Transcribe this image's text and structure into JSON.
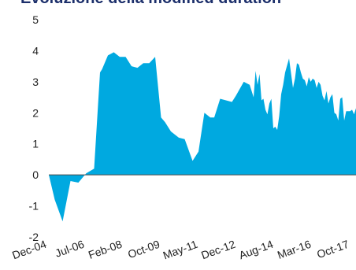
{
  "chart_data": {
    "type": "area",
    "title": "Evoluzione della modified duration",
    "xlabel": "",
    "ylabel": "",
    "ylim": [
      -2,
      5
    ],
    "yticks": [
      5,
      4,
      3,
      2,
      1,
      0,
      -1,
      -2
    ],
    "xlim": [
      "2004-12",
      "2017-12"
    ],
    "xticks": [
      "Dec-04",
      "Jul-06",
      "Feb-08",
      "Oct-09",
      "May-11",
      "Dec-12",
      "Aug-14",
      "Mar-16",
      "Oct-17"
    ],
    "grid": false,
    "legend": "none",
    "color": "#00a9e0",
    "series": [
      {
        "x": [
          "2004-12",
          "2005-03",
          "2005-07",
          "2005-11",
          "2006-03",
          "2006-07",
          "2006-11",
          "2007-02",
          "2007-03",
          "2007-06",
          "2007-09",
          "2007-12",
          "2008-03",
          "2008-06",
          "2008-09",
          "2008-12",
          "2009-03",
          "2009-06",
          "2009-09",
          "2009-11",
          "2010-02",
          "2010-06",
          "2010-09",
          "2011-01",
          "2011-04",
          "2011-07",
          "2011-10",
          "2011-12",
          "2012-03",
          "2012-06",
          "2012-09",
          "2012-11",
          "2013-03",
          "2013-06",
          "2013-08",
          "2013-09",
          "2013-10",
          "2013-11",
          "2013-12",
          "2014-01",
          "2014-02",
          "2014-03",
          "2014-04",
          "2014-05",
          "2014-06",
          "2014-07",
          "2014-08",
          "2014-09",
          "2014-10",
          "2014-11",
          "2014-12",
          "2015-02",
          "2015-04",
          "2015-05",
          "2015-06",
          "2015-07",
          "2015-08",
          "2015-09",
          "2015-10",
          "2015-11",
          "2015-12",
          "2016-01",
          "2016-02",
          "2016-03",
          "2016-04",
          "2016-05",
          "2016-06",
          "2016-07",
          "2016-08",
          "2016-09",
          "2016-10",
          "2016-11",
          "2016-12",
          "2017-01",
          "2017-02",
          "2017-03",
          "2017-04",
          "2017-05",
          "2017-06",
          "2017-07",
          "2017-08",
          "2017-09",
          "2017-10",
          "2017-11",
          "2017-12"
        ],
        "values": [
          0,
          -0.8,
          -1.5,
          -0.2,
          -0.25,
          0.05,
          0.2,
          3.3,
          3.4,
          3.85,
          3.95,
          3.8,
          3.8,
          3.5,
          3.45,
          3.6,
          3.6,
          3.8,
          1.85,
          1.7,
          1.4,
          1.2,
          1.15,
          0.45,
          0.75,
          2.0,
          1.85,
          1.85,
          2.45,
          2.4,
          2.35,
          2.55,
          3.0,
          2.9,
          2.5,
          3.35,
          2.9,
          3.25,
          2.4,
          2.45,
          2.1,
          1.95,
          2.3,
          2.45,
          1.5,
          1.55,
          1.45,
          1.9,
          2.6,
          2.9,
          3.3,
          3.75,
          2.8,
          3.1,
          3.6,
          3.55,
          3.3,
          3.1,
          3.05,
          2.85,
          3.15,
          3.0,
          3.1,
          3.05,
          2.8,
          3.0,
          2.9,
          2.55,
          2.4,
          2.7,
          2.3,
          2.5,
          2.6,
          2.0,
          1.95,
          1.75,
          2.45,
          2.5,
          1.75,
          2.05,
          2.05,
          2.05,
          2.1,
          1.95,
          2.15
        ]
      }
    ]
  }
}
